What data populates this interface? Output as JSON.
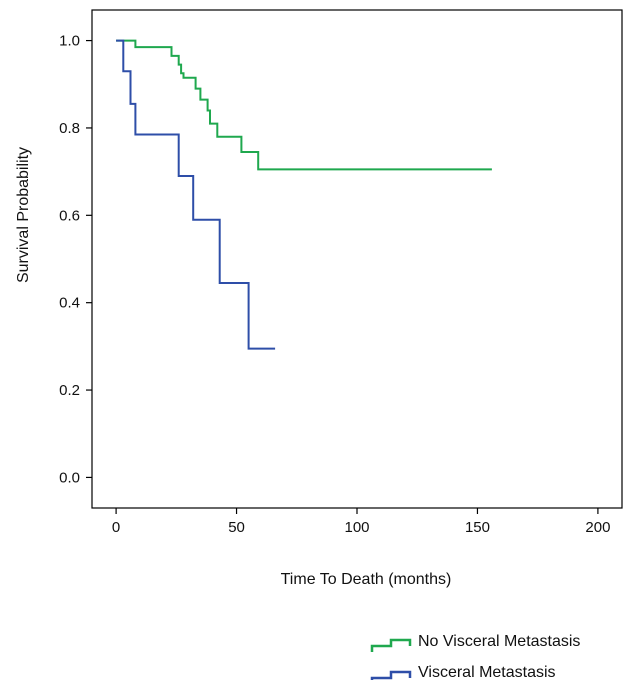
{
  "chart_data": {
    "type": "line",
    "subtype": "kaplan-meier step plot",
    "title": "",
    "xlabel": "Time To Death (months)",
    "ylabel": "Survival Probability",
    "xlim": [
      -10,
      210
    ],
    "ylim": [
      -0.07,
      1.07
    ],
    "x_ticks": [
      0,
      50,
      100,
      150,
      200
    ],
    "y_ticks": [
      0.0,
      0.2,
      0.4,
      0.6,
      0.8,
      1.0
    ],
    "x_tick_labels": [
      "0",
      "50",
      "100",
      "150",
      "200"
    ],
    "y_tick_labels": [
      "0.0",
      "0.2",
      "0.4",
      "0.6",
      "0.8",
      "1.0"
    ],
    "grid": false,
    "legend_position": "below-right",
    "series": [
      {
        "name": "No Visceral Metastasis",
        "color": "#1fa84e",
        "points": [
          [
            0,
            1.0
          ],
          [
            8,
            1.0
          ],
          [
            8,
            0.985
          ],
          [
            23,
            0.985
          ],
          [
            23,
            0.965
          ],
          [
            26,
            0.965
          ],
          [
            26,
            0.945
          ],
          [
            27,
            0.945
          ],
          [
            27,
            0.925
          ],
          [
            28,
            0.925
          ],
          [
            28,
            0.915
          ],
          [
            33,
            0.915
          ],
          [
            33,
            0.89
          ],
          [
            35,
            0.89
          ],
          [
            35,
            0.865
          ],
          [
            38,
            0.865
          ],
          [
            38,
            0.84
          ],
          [
            39,
            0.84
          ],
          [
            39,
            0.81
          ],
          [
            42,
            0.81
          ],
          [
            42,
            0.78
          ],
          [
            52,
            0.78
          ],
          [
            52,
            0.745
          ],
          [
            59,
            0.745
          ],
          [
            59,
            0.705
          ],
          [
            156,
            0.705
          ]
        ]
      },
      {
        "name": "Visceral Metastasis",
        "color": "#2e4ea8",
        "points": [
          [
            0,
            1.0
          ],
          [
            3,
            1.0
          ],
          [
            3,
            0.93
          ],
          [
            6,
            0.93
          ],
          [
            6,
            0.855
          ],
          [
            8,
            0.855
          ],
          [
            8,
            0.785
          ],
          [
            26,
            0.785
          ],
          [
            26,
            0.69
          ],
          [
            32,
            0.69
          ],
          [
            32,
            0.59
          ],
          [
            43,
            0.59
          ],
          [
            43,
            0.445
          ],
          [
            55,
            0.445
          ],
          [
            55,
            0.295
          ],
          [
            66,
            0.295
          ]
        ]
      }
    ]
  }
}
